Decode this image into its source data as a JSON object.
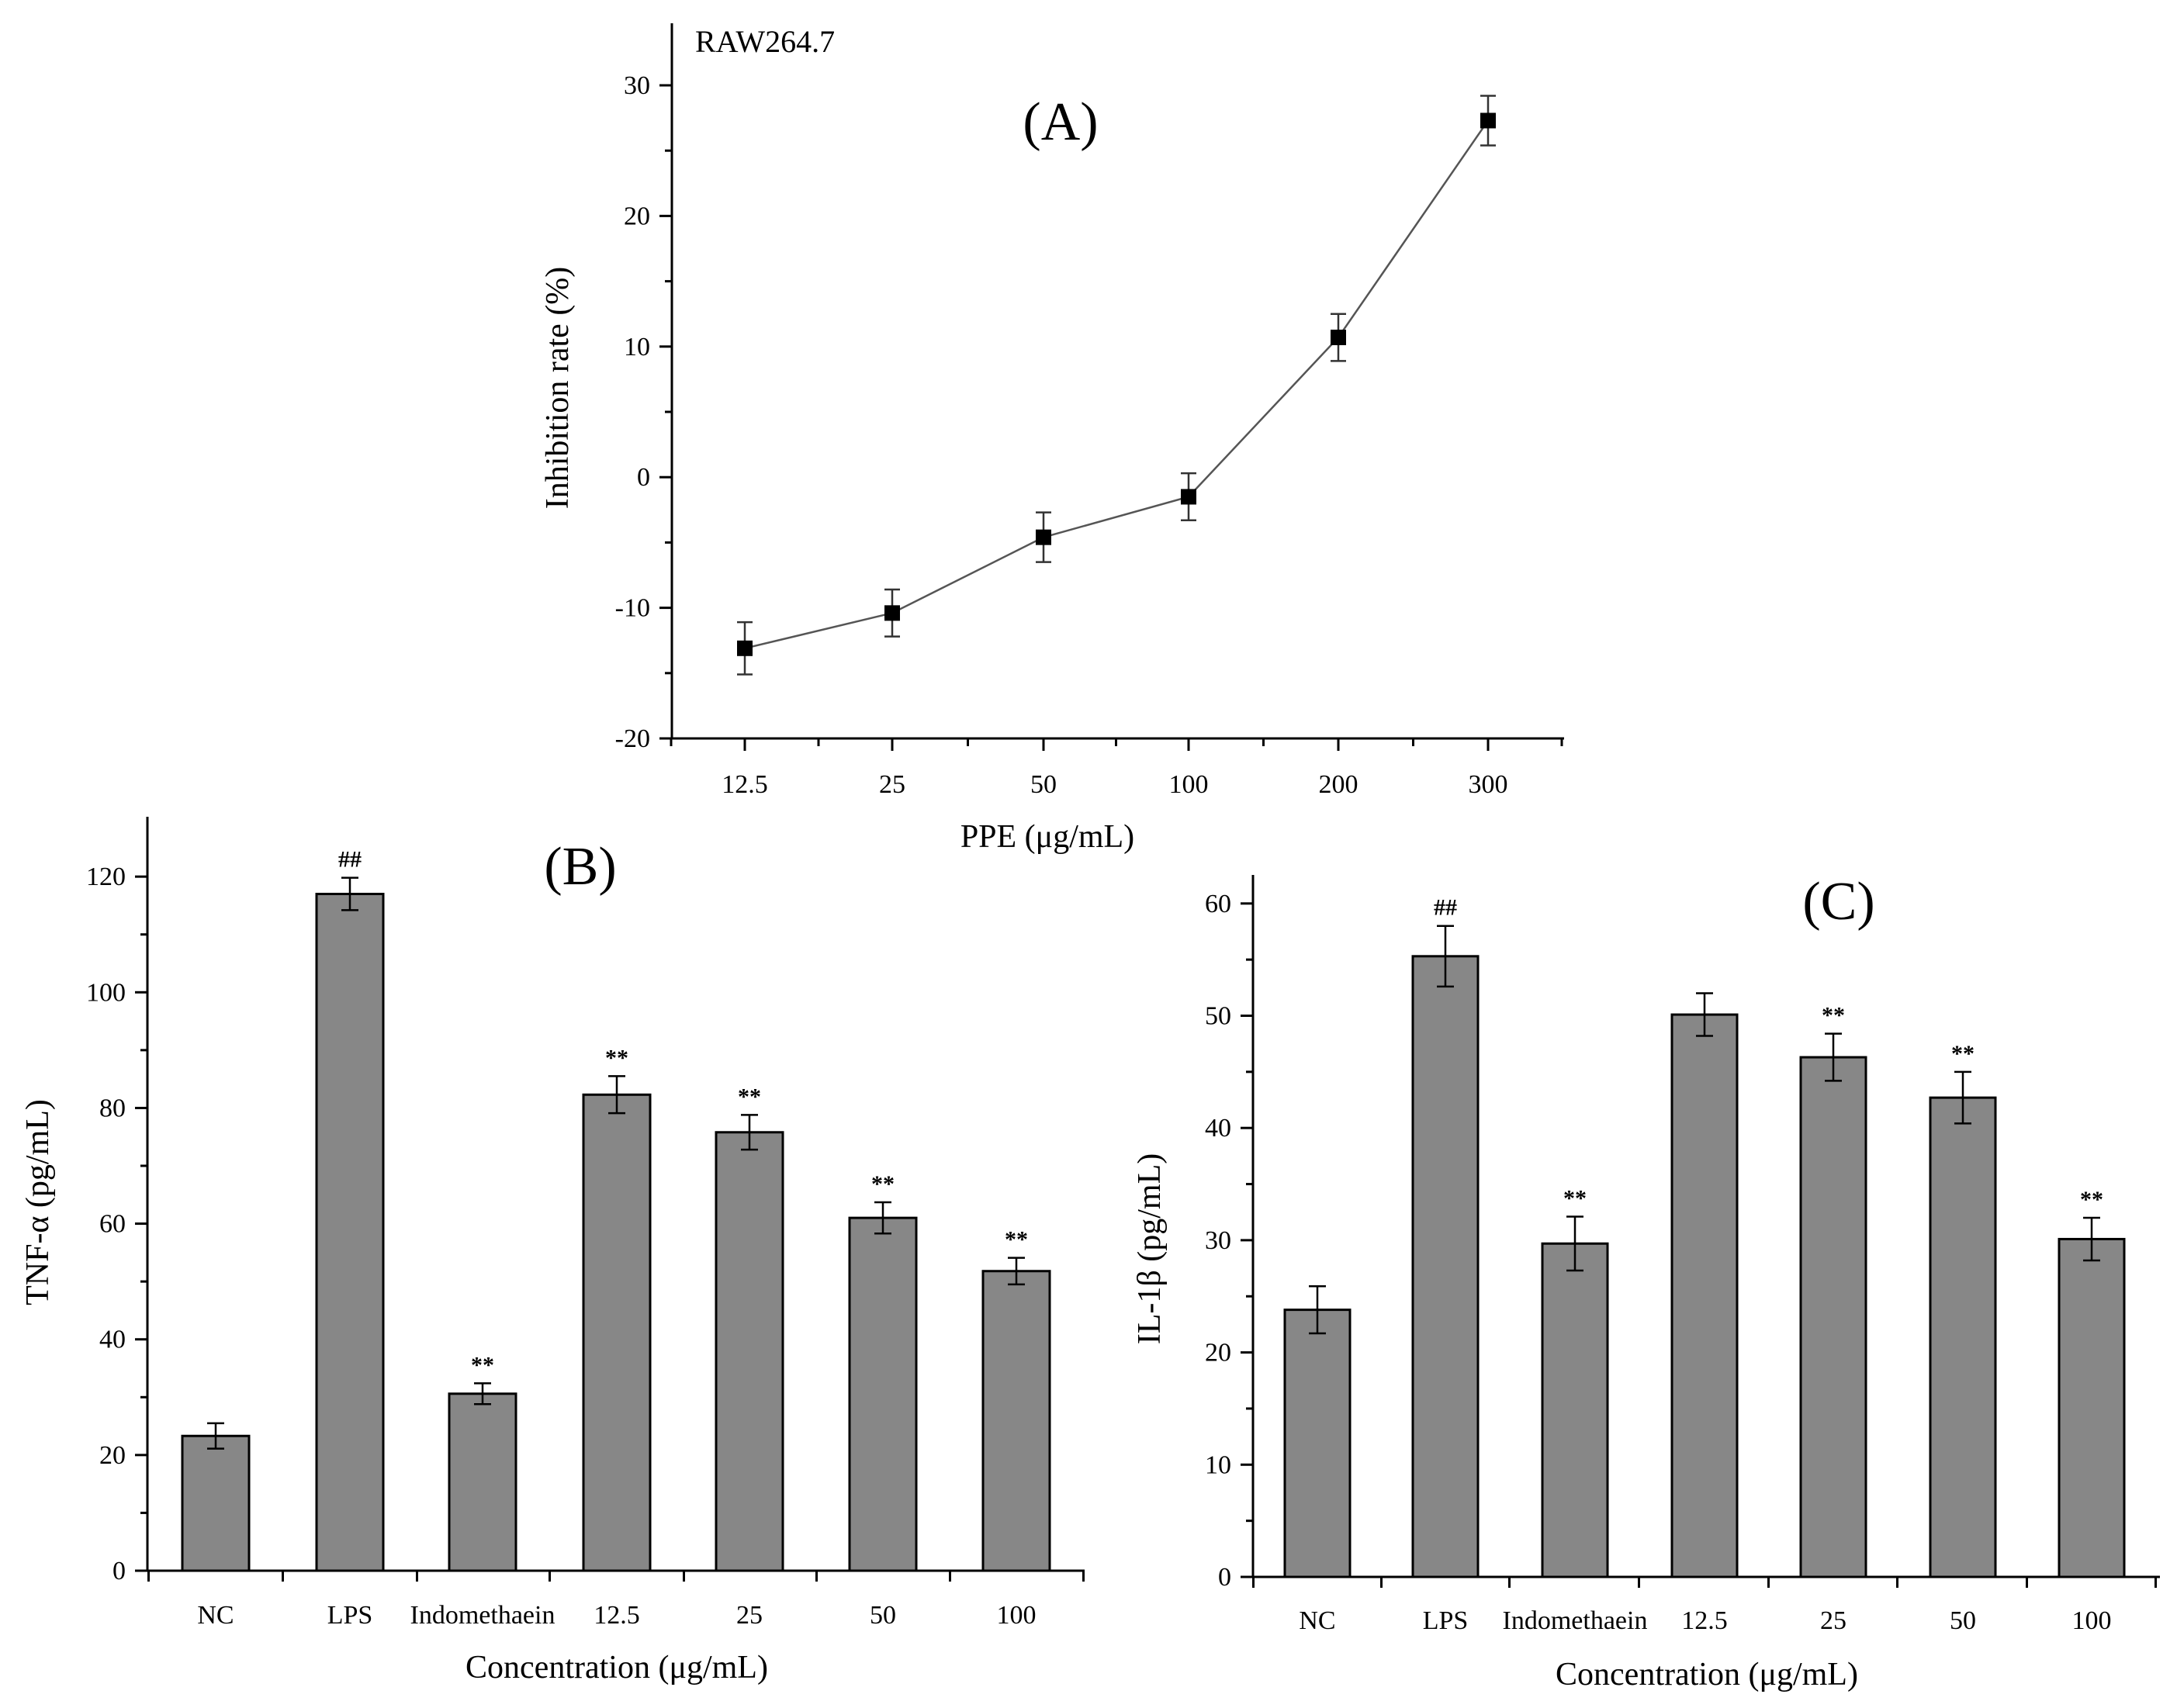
{
  "colors": {
    "bar_fill": "#878787",
    "axis": "#000000",
    "line": "#555555",
    "marker": "#000000"
  },
  "chart_data": [
    {
      "id": "A",
      "type": "line",
      "panel_label": "(A)",
      "annotation": "RAW264.7",
      "categories": [
        "12.5",
        "25",
        "50",
        "100",
        "200",
        "300"
      ],
      "values": [
        -13.1,
        -10.4,
        -4.6,
        -1.5,
        10.7,
        27.3
      ],
      "errors": [
        2.0,
        1.8,
        1.9,
        1.8,
        1.8,
        1.9
      ],
      "xlabel": "PPE (μg/mL)",
      "ylabel": "Inhibition rate (%)",
      "ylim": [
        -20,
        35
      ],
      "yticks": [
        -20,
        -10,
        0,
        10,
        20,
        30
      ],
      "ytick_labels": [
        "-20",
        "-10",
        "0",
        "10",
        "20",
        "30"
      ]
    },
    {
      "id": "B",
      "type": "bar",
      "panel_label": "(B)",
      "categories": [
        "NC",
        "LPS",
        "Indomethaein",
        "12.5",
        "25",
        "50",
        "100"
      ],
      "values": [
        23.3,
        117.0,
        30.6,
        82.3,
        75.8,
        61.0,
        51.8
      ],
      "errors": [
        2.2,
        2.8,
        1.8,
        3.2,
        3.0,
        2.7,
        2.3
      ],
      "significance": [
        "",
        "##",
        "**",
        "**",
        "**",
        "**",
        "**"
      ],
      "xlabel": "Concentration (μg/mL)",
      "ylabel": "TNF-α (pg/mL)",
      "ylim": [
        0,
        130
      ],
      "yticks": [
        0,
        20,
        40,
        60,
        80,
        100,
        120
      ],
      "ytick_labels": [
        "0",
        "20",
        "40",
        "60",
        "80",
        "100",
        "120"
      ]
    },
    {
      "id": "C",
      "type": "bar",
      "panel_label": "(C)",
      "categories": [
        "NC",
        "LPS",
        "Indomethaein",
        "12.5",
        "25",
        "50",
        "100"
      ],
      "values": [
        23.8,
        55.3,
        29.7,
        50.1,
        46.3,
        42.7,
        30.1
      ],
      "errors": [
        2.1,
        2.7,
        2.4,
        1.9,
        2.1,
        2.3,
        1.9
      ],
      "significance": [
        "",
        "##",
        "**",
        "",
        "**",
        "**",
        "**"
      ],
      "xlabel": "Concentration (μg/mL)",
      "ylabel": "IL-1β (pg/mL)",
      "ylim": [
        0,
        63
      ],
      "yticks": [
        0,
        10,
        20,
        30,
        40,
        50,
        60
      ],
      "ytick_labels": [
        "0",
        "10",
        "20",
        "30",
        "40",
        "50",
        "60"
      ]
    }
  ]
}
